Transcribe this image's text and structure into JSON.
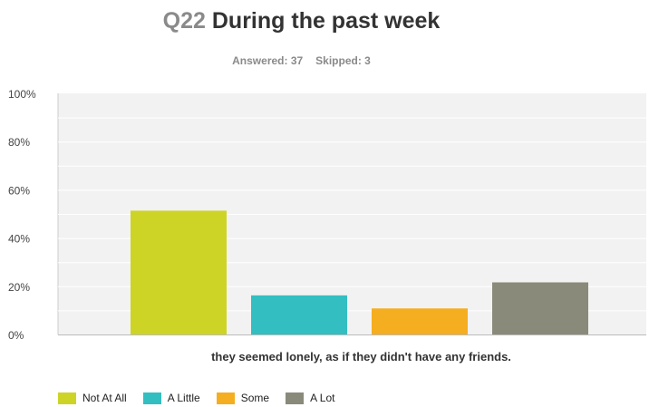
{
  "header": {
    "question_number": "Q22",
    "question_text": "During the past week",
    "answered": "Answered: 37",
    "skipped": "Skipped: 3"
  },
  "chart_data": {
    "type": "bar",
    "categories": [
      "they seemed lonely, as if they didn't have any friends."
    ],
    "series": [
      {
        "name": "Not At All",
        "color": "#cdd426",
        "values": [
          51.35
        ]
      },
      {
        "name": "A Little",
        "color": "#33bfc1",
        "values": [
          16.22
        ]
      },
      {
        "name": "Some",
        "color": "#f5ae1f",
        "values": [
          10.81
        ]
      },
      {
        "name": "A Lot",
        "color": "#8a8a7b",
        "values": [
          21.62
        ]
      }
    ],
    "ylim": [
      0,
      100
    ],
    "y_ticks": [
      0,
      20,
      40,
      60,
      80,
      100
    ],
    "y_tick_labels": [
      "0%",
      "20%",
      "40%",
      "60%",
      "80%",
      "100%"
    ],
    "xlabel": "they seemed lonely, as if they didn't have any friends.",
    "grid": true,
    "legend_position": "bottom-left",
    "plot_background": "#f2f2f2"
  }
}
